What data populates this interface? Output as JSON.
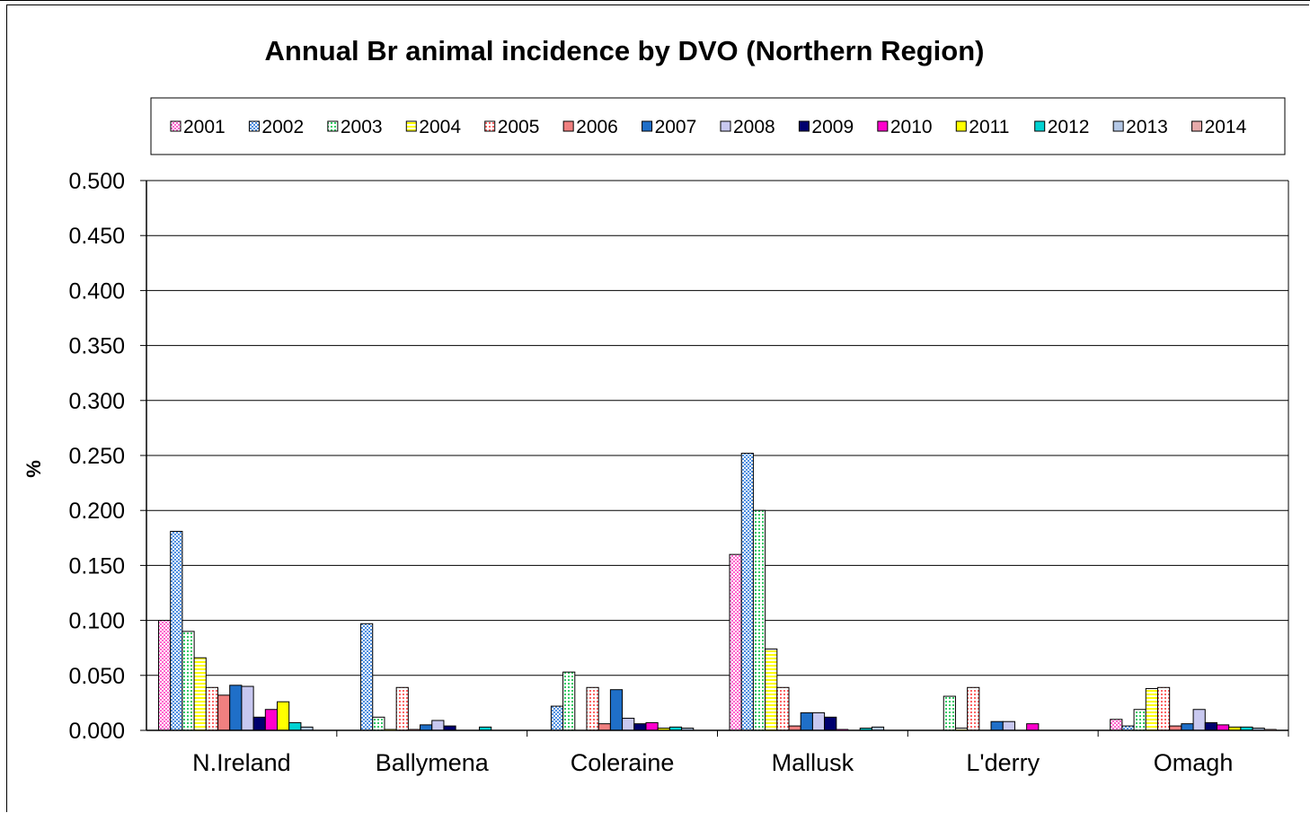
{
  "chart_data": {
    "type": "bar",
    "title": "Annual Br animal incidence by DVO (Northern Region)",
    "xlabel": "",
    "ylabel": "%",
    "ylim": [
      0,
      0.5
    ],
    "yticks": [
      "0.000",
      "0.050",
      "0.100",
      "0.150",
      "0.200",
      "0.250",
      "0.300",
      "0.350",
      "0.400",
      "0.450",
      "0.500"
    ],
    "grid": true,
    "legend_position": "top",
    "categories": [
      "N.Ireland",
      "Ballymena",
      "Coleraine",
      "Mallusk",
      "L'derry",
      "Omagh"
    ],
    "series": [
      {
        "name": "2001",
        "color": "#ff66cc",
        "pattern": "checker",
        "values": [
          0.1,
          0.0,
          0.0,
          0.16,
          0.0,
          0.01
        ]
      },
      {
        "name": "2002",
        "color": "#4f8fe0",
        "pattern": "checker",
        "values": [
          0.181,
          0.097,
          0.022,
          0.252,
          0.0,
          0.004
        ]
      },
      {
        "name": "2003",
        "color": "#33cc66",
        "pattern": "dots",
        "values": [
          0.09,
          0.012,
          0.053,
          0.2,
          0.031,
          0.019
        ]
      },
      {
        "name": "2004",
        "color": "#ffff00",
        "pattern": "stripes",
        "values": [
          0.066,
          0.001,
          0.0,
          0.074,
          0.002,
          0.038
        ]
      },
      {
        "name": "2005",
        "color": "#ff6666",
        "pattern": "dots",
        "values": [
          0.039,
          0.039,
          0.039,
          0.039,
          0.039,
          0.039
        ]
      },
      {
        "name": "2006",
        "color": "#f08080",
        "pattern": "solid",
        "values": [
          0.032,
          0.001,
          0.006,
          0.004,
          0.0,
          0.004
        ]
      },
      {
        "name": "2007",
        "color": "#1f6fc8",
        "pattern": "solid",
        "values": [
          0.041,
          0.005,
          0.037,
          0.016,
          0.008,
          0.006
        ]
      },
      {
        "name": "2008",
        "color": "#c8c8f0",
        "pattern": "solid",
        "values": [
          0.04,
          0.009,
          0.011,
          0.016,
          0.008,
          0.019
        ]
      },
      {
        "name": "2009",
        "color": "#00006e",
        "pattern": "solid",
        "values": [
          0.012,
          0.004,
          0.006,
          0.012,
          0.0,
          0.007
        ]
      },
      {
        "name": "2010",
        "color": "#ff00cc",
        "pattern": "solid",
        "values": [
          0.019,
          0.0,
          0.007,
          0.001,
          0.006,
          0.005
        ]
      },
      {
        "name": "2011",
        "color": "#ffff00",
        "pattern": "solid",
        "values": [
          0.026,
          0.0,
          0.002,
          0.0,
          0.0,
          0.003
        ]
      },
      {
        "name": "2012",
        "color": "#00d2d2",
        "pattern": "solid",
        "values": [
          0.007,
          0.003,
          0.003,
          0.002,
          0.0,
          0.003
        ]
      },
      {
        "name": "2013",
        "color": "#b4c8e6",
        "pattern": "solid",
        "values": [
          0.003,
          0.0,
          0.002,
          0.003,
          0.0,
          0.002
        ]
      },
      {
        "name": "2014",
        "color": "#e6aaaa",
        "pattern": "solid",
        "values": [
          0.0,
          0.0,
          0.0,
          0.0,
          0.0,
          0.001
        ]
      }
    ]
  }
}
